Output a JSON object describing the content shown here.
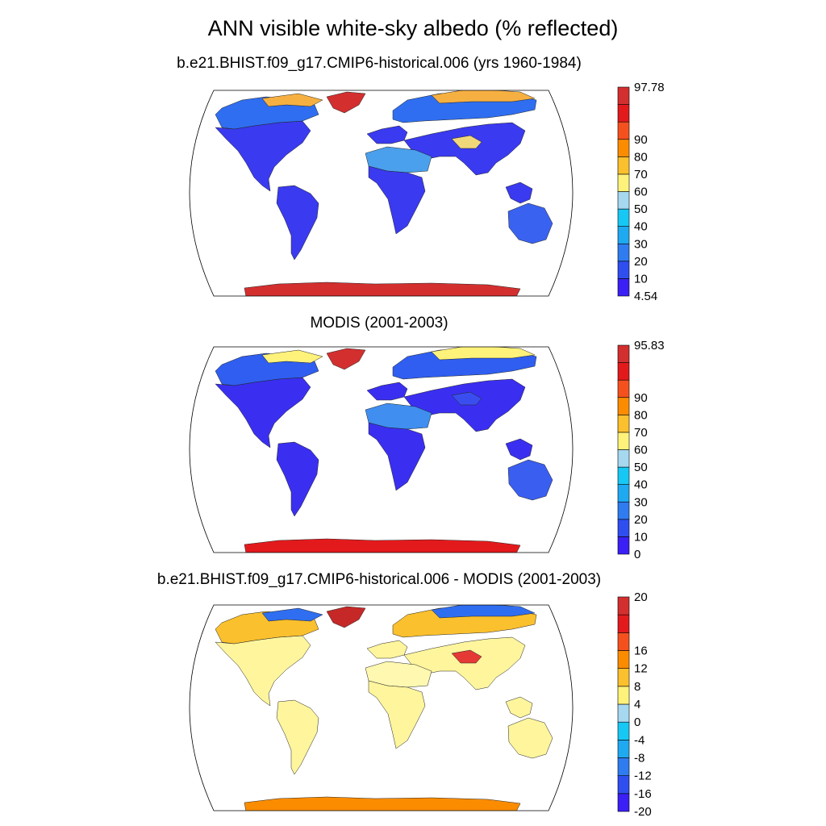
{
  "title": "ANN visible white-sky albedo (% reflected)",
  "panels": [
    {
      "title": "b.e21.BHIST.f09_g17.CMIP6-historical.006 (yrs 1960-1984)",
      "colorbar": {
        "labels": [
          "4.54",
          "10",
          "20",
          "30",
          "40",
          "50",
          "60",
          "70",
          "80",
          "90",
          "97.78"
        ],
        "colors": [
          "#3a20f5",
          "#2f4ef0",
          "#2f7cf0",
          "#1fa9f0",
          "#17c8f5",
          "#a6d8f0",
          "#fff27a",
          "#fbc02d",
          "#fb8c00",
          "#f4511e",
          "#e31a1c",
          "#d32f2f"
        ]
      },
      "regions": {
        "land": "#3a3af0",
        "north": "#2f6ef0",
        "arctic": "#f6b042",
        "greenland": "#d32f2f",
        "antarctica": "#d32f2f",
        "desert": "#4aa0ec",
        "tibet": "#f0d77a",
        "australia": "#3a62f0"
      }
    },
    {
      "title": "MODIS (2001-2003)",
      "colorbar": {
        "labels": [
          "0",
          "10",
          "20",
          "30",
          "40",
          "50",
          "60",
          "70",
          "80",
          "90",
          "95.83"
        ],
        "colors": [
          "#3a20f5",
          "#2f4ef0",
          "#2f7cf0",
          "#1fa9f0",
          "#17c8f5",
          "#a6d8f0",
          "#fff27a",
          "#fbc02d",
          "#fb8c00",
          "#f4511e",
          "#e31a1c",
          "#d32f2f"
        ]
      },
      "regions": {
        "land": "#3a2ff0",
        "north": "#2f5ef0",
        "arctic": "#fff27a",
        "greenland": "#d32f2f",
        "antarctica": "#e31a1c",
        "desert": "#3f8ef0",
        "tibet": "#3a4ef0",
        "australia": "#3a5ef0"
      }
    },
    {
      "title": "b.e21.BHIST.f09_g17.CMIP6-historical.006 - MODIS (2001-2003)",
      "colorbar": {
        "labels": [
          "-20",
          "-16",
          "-12",
          "-8",
          "-4",
          "0",
          "4",
          "8",
          "12",
          "16",
          "20"
        ],
        "colors": [
          "#3a20f5",
          "#2f4ef0",
          "#2f7cf0",
          "#1fa9f0",
          "#17c8f5",
          "#a6d8f0",
          "#fff27a",
          "#fbc02d",
          "#fb8c00",
          "#f4511e",
          "#e31a1c",
          "#d32f2f"
        ]
      },
      "regions": {
        "land": "#fff59d",
        "north": "#fbc02d",
        "arctic": "#2f6ef0",
        "greenland": "#c62828",
        "antarctica": "#fb8c00",
        "desert": "#fff8b0",
        "tibet": "#e53935",
        "australia": "#fff59d"
      }
    }
  ]
}
